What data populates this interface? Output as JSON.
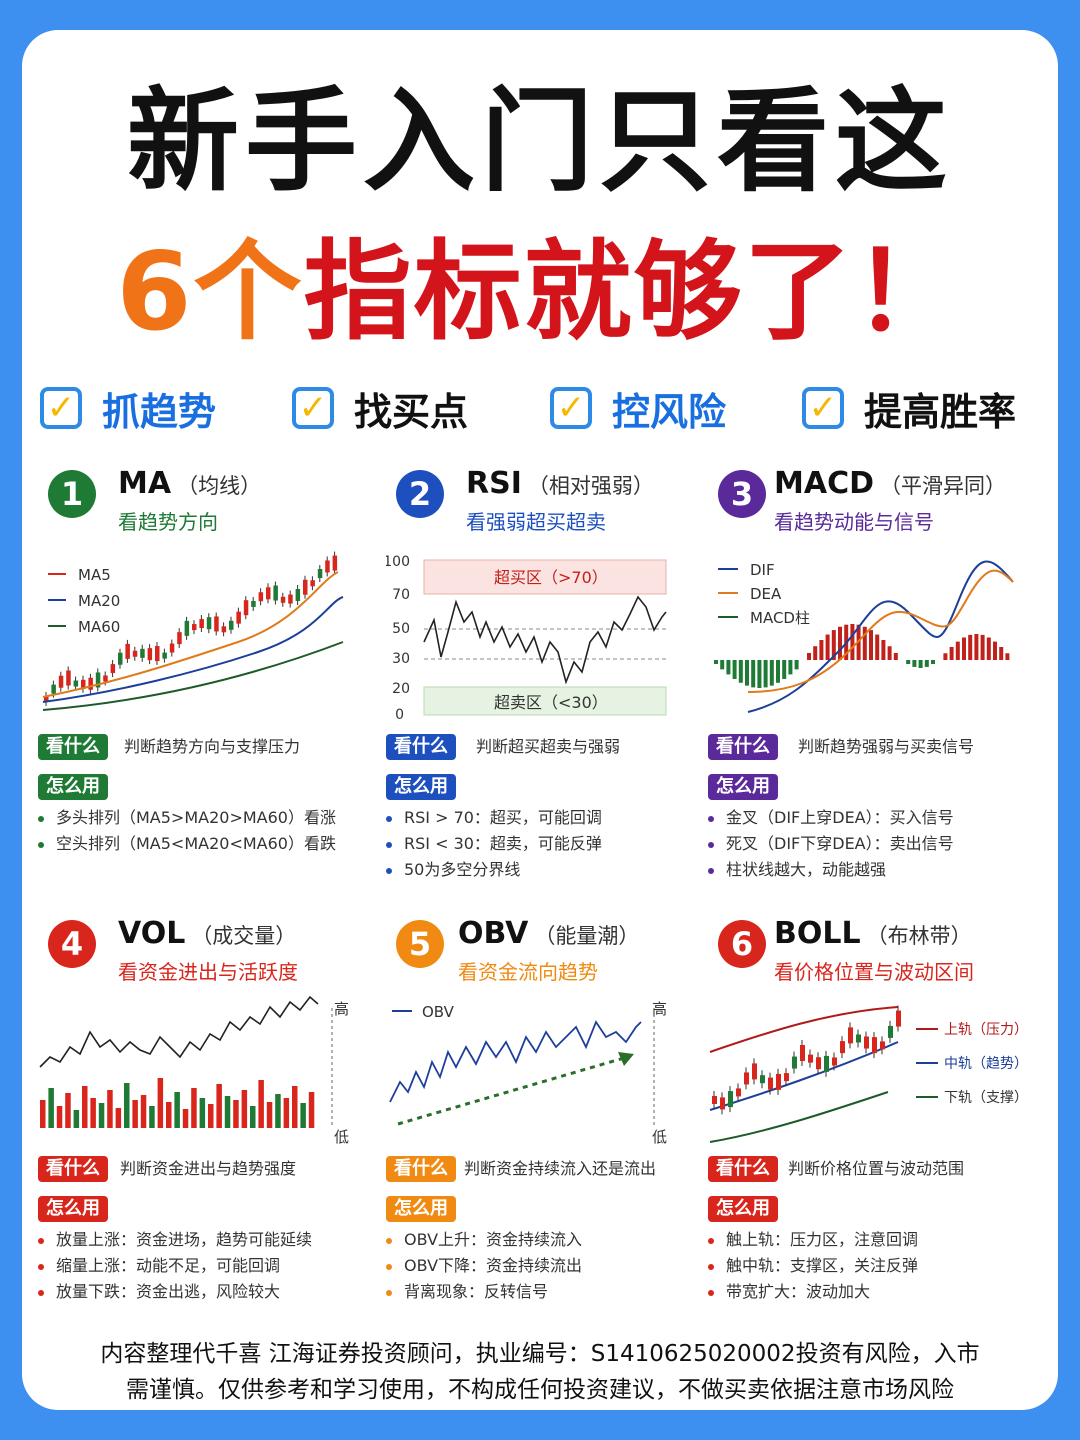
{
  "title_line1": "新手入门只看这",
  "title_num": "6个",
  "title_rest": "指标就够了！",
  "checks": [
    {
      "label": "抓趋势",
      "color": "#1a6fe0"
    },
    {
      "label": "找买点",
      "color": "#111111"
    },
    {
      "label": "控风险",
      "color": "#1a6fe0"
    },
    {
      "label": "提高胜率",
      "color": "#111111"
    }
  ],
  "check_mark": "✓",
  "panels": [
    {
      "num": "1",
      "name": "MA",
      "paren": "（均线）",
      "sub": "看趋势方向",
      "color": "#1e7a34",
      "what_tag": "看什么",
      "what": "判断趋势方向与支撑压力",
      "how_tag": "怎么用",
      "bullets": [
        "多头排列（MA5>MA20>MA60）看涨",
        "空头排列（MA5<MA20<MA60）看跌"
      ],
      "legend": [
        "MA5",
        "MA20",
        "MA60"
      ]
    },
    {
      "num": "2",
      "name": "RSI",
      "paren": "（相对强弱）",
      "sub": "看强弱超买超卖",
      "color": "#1d4fbf",
      "what_tag": "看什么",
      "what": "判断超买超卖与强弱",
      "how_tag": "怎么用",
      "bullets": [
        "RSI > 70：超买，可能回调",
        "RSI < 30：超卖，可能反弹",
        "50为多空分界线"
      ],
      "overbought": "超买区（>70）",
      "oversold": "超卖区（<30）",
      "yticks": [
        "100",
        "70",
        "50",
        "30",
        "20",
        "0"
      ]
    },
    {
      "num": "3",
      "name": "MACD",
      "paren": "（平滑异同）",
      "sub": "看趋势动能与信号",
      "color": "#5a2a9a",
      "what_tag": "看什么",
      "what": "判断趋势强弱与买卖信号",
      "how_tag": "怎么用",
      "bullets": [
        "金叉（DIF上穿DEA）：买入信号",
        "死叉（DIF下穿DEA）：卖出信号",
        "柱状线越大，动能越强"
      ],
      "legend": [
        "DIF",
        "DEA",
        "MACD柱"
      ]
    },
    {
      "num": "4",
      "name": "VOL",
      "paren": "（成交量）",
      "sub": "看资金进出与活跃度",
      "color": "#d9261c",
      "what_tag": "看什么",
      "what": "判断资金进出与趋势强度",
      "how_tag": "怎么用",
      "bullets": [
        "放量上涨：资金进场，趋势可能延续",
        "缩量上涨：动能不足，可能回调",
        "放量下跌：资金出逃，风险较大"
      ],
      "high": "高",
      "low": "低"
    },
    {
      "num": "5",
      "name": "OBV",
      "paren": "（能量潮）",
      "sub": "看资金流向趋势",
      "color": "#f08a12",
      "what_tag": "看什么",
      "what": "判断资金持续流入还是流出",
      "how_tag": "怎么用",
      "bullets": [
        "OBV上升：资金持续流入",
        "OBV下降：资金持续流出",
        "背离现象：反转信号"
      ],
      "legend": [
        "OBV"
      ],
      "high": "高",
      "low": "低"
    },
    {
      "num": "6",
      "name": "BOLL",
      "paren": "（布林带）",
      "sub": "看价格位置与波动区间",
      "color": "#d9261c",
      "what_tag": "看什么",
      "what": "判断价格位置与波动范围",
      "how_tag": "怎么用",
      "bullets": [
        "触上轨：压力区，注意回调",
        "触中轨：支撑区，关注反弹",
        "带宽扩大：波动加大"
      ],
      "legend": [
        "上轨（压力）",
        "中轨（趋势）",
        "下轨（支撑）"
      ]
    }
  ],
  "footer_line1": "内容整理代千喜 江海证券投资顾问，执业编号：S1410625020002投资有风险，入市",
  "footer_line2": "需谨慎。仅供参考和学习使用，不构成任何投资建议，不做买卖依据注意市场风险",
  "colors": {
    "bg": "#3d8ff0",
    "orange": "#f07318",
    "red": "#d4141b",
    "green": "#1e7a34",
    "blue": "#1d4fbf",
    "purple": "#5a2a9a"
  }
}
